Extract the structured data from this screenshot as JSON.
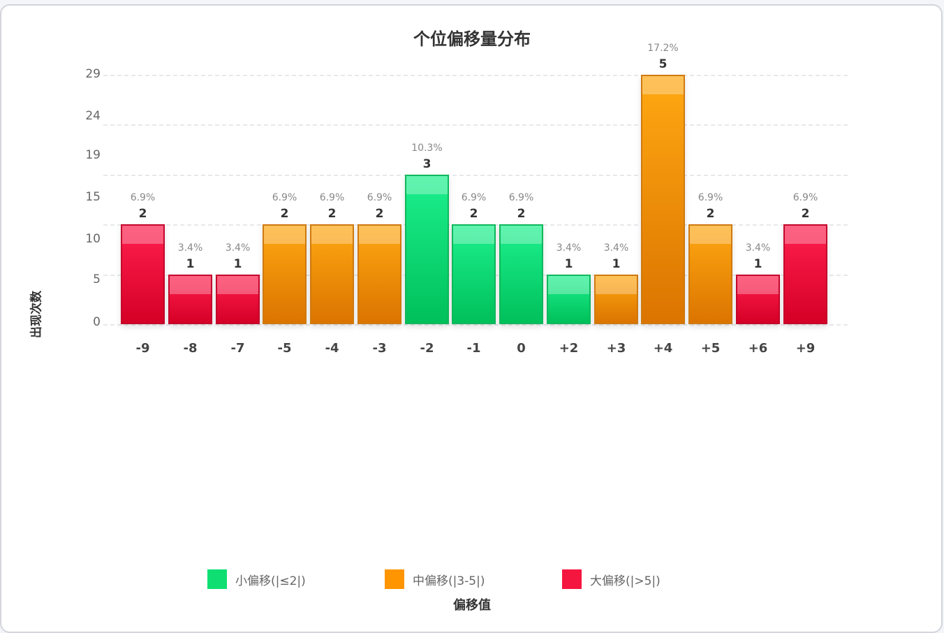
{
  "chart_data": {
    "type": "bar",
    "title": "个位偏移量分布",
    "xlabel": "偏移值",
    "ylabel": "出现次数",
    "categories": [
      "-9",
      "-8",
      "-7",
      "-5",
      "-4",
      "-3",
      "-2",
      "-1",
      "0",
      "+2",
      "+3",
      "+4",
      "+5",
      "+6",
      "+9"
    ],
    "values": [
      2,
      1,
      1,
      2,
      2,
      2,
      3,
      2,
      2,
      1,
      1,
      5,
      2,
      1,
      2
    ],
    "percent_labels": [
      "6.9%",
      "3.4%",
      "3.4%",
      "6.9%",
      "6.9%",
      "6.9%",
      "10.3%",
      "6.9%",
      "6.9%",
      "3.4%",
      "3.4%",
      "17.2%",
      "6.9%",
      "3.4%",
      "6.9%"
    ],
    "groups": [
      "big",
      "big",
      "big",
      "mid",
      "mid",
      "mid",
      "small",
      "small",
      "small",
      "small",
      "mid",
      "mid",
      "mid",
      "big",
      "big"
    ],
    "y_tick_labels": [
      "0",
      "5",
      "10",
      "15",
      "19",
      "24",
      "29"
    ],
    "ylim": [
      0,
      5
    ],
    "grid": true,
    "legend_position": "bottom",
    "legend": [
      {
        "key": "small",
        "label": "小偏移(|≤2|)",
        "color": "#0fdf72"
      },
      {
        "key": "mid",
        "label": "中偏移(|3-5|)",
        "color": "#ff9500"
      },
      {
        "key": "big",
        "label": "大偏移(|>5|)",
        "color": "#f5163f"
      }
    ]
  }
}
